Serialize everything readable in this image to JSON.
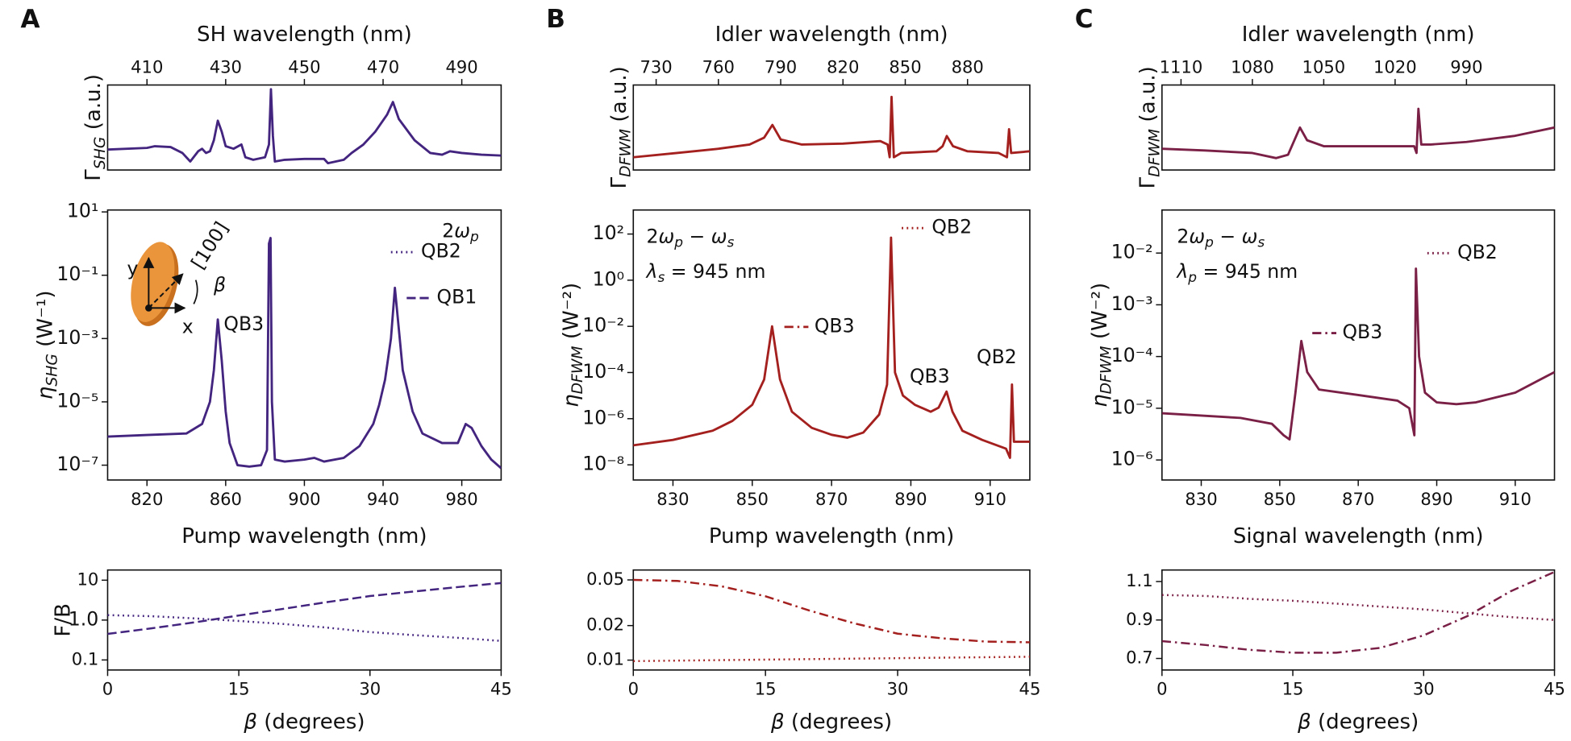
{
  "chart_data": [
    {
      "type": "line",
      "panel_label": "A",
      "xaxis": "top",
      "xlabel": "SH wavelength (nm)",
      "ylabel": [
        {
          "text": "Γ"
        },
        {
          "text": "SHG",
          "italic": true,
          "sub": true
        },
        {
          "text": " (a.u.)"
        }
      ],
      "x": [
        400,
        410,
        412,
        416,
        419,
        421,
        423,
        424,
        425,
        426,
        427,
        428,
        429,
        430,
        432,
        434,
        435,
        437,
        440,
        441,
        441.5,
        442,
        442.5,
        445,
        450,
        455,
        456,
        460,
        462,
        465,
        468,
        471,
        472.5,
        474,
        478,
        482,
        485,
        487,
        490,
        495,
        500
      ],
      "series": [
        {
          "color": "#43247f",
          "values": [
            0.24,
            0.26,
            0.28,
            0.27,
            0.2,
            0.1,
            0.22,
            0.25,
            0.2,
            0.22,
            0.35,
            0.58,
            0.45,
            0.28,
            0.25,
            0.3,
            0.15,
            0.12,
            0.15,
            0.3,
            0.95,
            0.4,
            0.1,
            0.12,
            0.13,
            0.13,
            0.08,
            0.12,
            0.2,
            0.3,
            0.45,
            0.65,
            0.8,
            0.6,
            0.35,
            0.2,
            0.18,
            0.22,
            0.2,
            0.18,
            0.17
          ]
        }
      ],
      "xlim": [
        400,
        500
      ],
      "xticks": [
        410,
        430,
        450,
        470,
        490
      ],
      "ylim": [
        0,
        1
      ]
    },
    {
      "type": "line",
      "xlabel": "Pump wavelength (nm)",
      "ylabel": [
        {
          "text": "η",
          "italic": true
        },
        {
          "text": "SHG",
          "italic": true,
          "sub": true
        },
        {
          "text": " (W⁻¹)"
        }
      ],
      "x": [
        800,
        820,
        840,
        848,
        852,
        854,
        856,
        858,
        860,
        862,
        866,
        872,
        878,
        881,
        882,
        882.8,
        883.5,
        885,
        890,
        900,
        905,
        910,
        920,
        928,
        935,
        938,
        941,
        944,
        946,
        948,
        950,
        955,
        960,
        970,
        978,
        982,
        985,
        990,
        995,
        1000
      ],
      "series": [
        {
          "color": "#43247f",
          "values": [
            8e-07,
            9e-07,
            1e-06,
            2e-06,
            1e-05,
            0.0001,
            0.004,
            0.0002,
            5e-06,
            5e-07,
            1e-07,
            9e-08,
            1e-07,
            3e-07,
            1,
            1.5,
            1e-05,
            1.5e-07,
            1.3e-07,
            1.5e-07,
            1.7e-07,
            1.3e-07,
            1.7e-07,
            4e-07,
            2e-06,
            8e-06,
            5e-05,
            0.001,
            0.04,
            0.002,
            0.0001,
            5e-06,
            1e-06,
            5e-07,
            5e-07,
            2e-06,
            1.5e-06,
            4e-07,
            1.5e-07,
            8e-08
          ]
        }
      ],
      "xlim": [
        800,
        1000
      ],
      "xticks": [
        820,
        860,
        900,
        940,
        980
      ],
      "yscale": "log",
      "ylim": [
        3.4e-08,
        11.5
      ],
      "yticks": [
        {
          "value": 1e-07,
          "label": "10⁻⁷"
        },
        {
          "value": 1e-05,
          "label": "10⁻⁵"
        },
        {
          "value": 0.001,
          "label": "10⁻³"
        },
        {
          "value": 0.1,
          "label": "10⁻¹"
        },
        {
          "value": 10,
          "label": "10¹"
        }
      ],
      "annotations": [
        {
          "text": [
            {
              "text": "2"
            },
            {
              "text": "ω",
              "italic": true
            },
            {
              "text": "p",
              "italic": true,
              "sub": true
            }
          ]
        },
        {
          "text": "QB2",
          "dash": "dotted"
        },
        {
          "text": "QB1",
          "dash": "dashed"
        },
        {
          "text": "QB3"
        }
      ],
      "inset_labels": [
        "y",
        "x",
        "[100]",
        "β"
      ]
    },
    {
      "type": "line",
      "ylabel": "F/B",
      "xlabel": [
        {
          "text": "β",
          "italic": true
        },
        {
          "text": " (degrees)"
        }
      ],
      "x": [
        0,
        5,
        10,
        15,
        20,
        25,
        30,
        35,
        40,
        45
      ],
      "series": [
        {
          "color": "#43247f",
          "dash": "dashed",
          "values": [
            0.45,
            0.62,
            0.88,
            1.3,
            1.9,
            2.8,
            4.0,
            5.2,
            6.7,
            8.5
          ]
        },
        {
          "color": "#43247f",
          "dash": "dotted",
          "values": [
            1.33,
            1.25,
            1.1,
            0.95,
            0.8,
            0.65,
            0.5,
            0.42,
            0.36,
            0.3
          ]
        }
      ],
      "xlim": [
        0,
        45
      ],
      "xticks": [
        0,
        15,
        30,
        45
      ],
      "yscale": "log",
      "ylim": [
        0.056,
        18
      ],
      "yticks": [
        0.1,
        {
          "value": 1,
          "label": "1.0"
        },
        10
      ]
    },
    {
      "type": "line",
      "panel_label": "B",
      "xaxis": "top",
      "xlabel": "Idler wavelength (nm)",
      "ylabel": [
        {
          "text": "Γ"
        },
        {
          "text": "DFWM",
          "italic": true,
          "sub": true
        },
        {
          "text": " (a.u.)"
        }
      ],
      "x": [
        719,
        740,
        760,
        775,
        782,
        786,
        790,
        800,
        820,
        838,
        841.5,
        842.5,
        843.4,
        844.5,
        848,
        865,
        868,
        870,
        873,
        880,
        895,
        899,
        900,
        901,
        910
      ],
      "series": [
        {
          "color": "#a3201f",
          "values": [
            0.15,
            0.2,
            0.25,
            0.3,
            0.38,
            0.53,
            0.36,
            0.3,
            0.31,
            0.34,
            0.3,
            0.15,
            0.86,
            0.15,
            0.2,
            0.22,
            0.28,
            0.4,
            0.28,
            0.22,
            0.2,
            0.15,
            0.48,
            0.2,
            0.22
          ]
        }
      ],
      "xlim": [
        719,
        910
      ],
      "xticks": [
        730,
        760,
        790,
        820,
        850,
        880
      ],
      "ylim": [
        0,
        1
      ]
    },
    {
      "type": "line",
      "xlabel": "Pump wavelength (nm)",
      "ylabel": [
        {
          "text": "η",
          "italic": true
        },
        {
          "text": "DFWM",
          "italic": true,
          "sub": true
        },
        {
          "text": " (W⁻²)"
        }
      ],
      "x": [
        820,
        830,
        840,
        845,
        850,
        853,
        855,
        857,
        860,
        865,
        870,
        874,
        878,
        882,
        884,
        885,
        886,
        888,
        891,
        895,
        897,
        899,
        900.5,
        903,
        908,
        914,
        915,
        915.5,
        916,
        918,
        920
      ],
      "series": [
        {
          "color": "#a3201f",
          "values": [
            7e-08,
            1.2e-07,
            3e-07,
            8e-07,
            4e-06,
            5e-05,
            0.01,
            5e-05,
            2e-06,
            4e-07,
            2e-07,
            1.5e-07,
            2.5e-07,
            1.5e-06,
            3e-05,
            70,
            0.0001,
            1e-05,
            4e-06,
            2e-06,
            3e-06,
            1.5e-05,
            2e-06,
            3e-07,
            1.2e-07,
            5e-08,
            2e-08,
            3e-05,
            1e-07,
            1e-07,
            1e-07
          ]
        }
      ],
      "xlim": [
        820,
        920
      ],
      "xticks": [
        830,
        850,
        870,
        890,
        910
      ],
      "yscale": "log",
      "ylim": [
        2.2e-09,
        1100
      ],
      "yticks": [
        {
          "value": 1e-08,
          "label": "10⁻⁸"
        },
        {
          "value": 1e-06,
          "label": "10⁻⁶"
        },
        {
          "value": 0.0001,
          "label": "10⁻⁴"
        },
        {
          "value": 0.01,
          "label": "10⁻²"
        },
        {
          "value": 1,
          "label": "10⁰"
        },
        {
          "value": 100,
          "label": "10²"
        }
      ],
      "annotations": [
        {
          "text": [
            {
              "text": "2"
            },
            {
              "text": "ω",
              "italic": true
            },
            {
              "text": "p",
              "italic": true,
              "sub": true
            },
            {
              "text": " − "
            },
            {
              "text": "ω",
              "italic": true
            },
            {
              "text": "s",
              "italic": true,
              "sub": true
            }
          ]
        },
        {
          "text": [
            {
              "text": "λ",
              "italic": true
            },
            {
              "text": "s",
              "italic": true,
              "sub": true
            },
            {
              "text": " = 945 nm"
            }
          ]
        },
        {
          "text": "QB2",
          "dash": "dotted"
        },
        {
          "text": "QB3",
          "dash": "dashdot"
        },
        {
          "text": "QB3"
        },
        {
          "text": "QB2"
        }
      ]
    },
    {
      "type": "line",
      "xlabel": [
        {
          "text": "β",
          "italic": true
        },
        {
          "text": " (degrees)"
        }
      ],
      "x": [
        0,
        5,
        10,
        15,
        20,
        25,
        30,
        35,
        40,
        45
      ],
      "series": [
        {
          "color": "#a3201f",
          "dash": "dashdot",
          "values": [
            0.05,
            0.049,
            0.044,
            0.036,
            0.027,
            0.021,
            0.017,
            0.0155,
            0.0145,
            0.0143
          ]
        },
        {
          "color": "#a3201f",
          "dash": "dotted",
          "values": [
            0.0098,
            0.0099,
            0.01,
            0.0101,
            0.0102,
            0.0103,
            0.0104,
            0.0105,
            0.0106,
            0.0107
          ]
        }
      ],
      "xlim": [
        0,
        45
      ],
      "xticks": [
        0,
        15,
        30,
        45
      ],
      "yscale": "log",
      "ylim": [
        0.0082,
        0.061
      ],
      "yticks": [
        0.01,
        0.02,
        0.05
      ]
    },
    {
      "type": "line",
      "panel_label": "C",
      "xaxis": "top",
      "xlabel": "Idler wavelength (nm)",
      "ylabel": [
        {
          "text": "Γ"
        },
        {
          "text": "DFWM",
          "italic": true,
          "sub": true
        },
        {
          "text": " (a.u.)"
        }
      ],
      "x": [
        1118,
        1100,
        1080,
        1070,
        1065,
        1060,
        1057,
        1050,
        1030,
        1012,
        1011,
        1010.2,
        1009,
        1005,
        990,
        970,
        953
      ],
      "series": [
        {
          "color": "#7a1f45",
          "values": [
            0.25,
            0.23,
            0.2,
            0.14,
            0.18,
            0.5,
            0.35,
            0.28,
            0.28,
            0.28,
            0.2,
            0.72,
            0.3,
            0.3,
            0.33,
            0.4,
            0.5
          ]
        }
      ],
      "xlim": [
        1118,
        953
      ],
      "xticks": [
        1110,
        1080,
        1050,
        1020,
        990
      ],
      "ylim": [
        0,
        1
      ]
    },
    {
      "type": "line",
      "xlabel": "Signal wavelength (nm)",
      "ylabel": [
        {
          "text": "η",
          "italic": true
        },
        {
          "text": "DFWM",
          "italic": true,
          "sub": true
        },
        {
          "text": " (W⁻²)"
        }
      ],
      "x": [
        820,
        840,
        848,
        851,
        852.5,
        854,
        855.5,
        857,
        860,
        870,
        880,
        883,
        884.3,
        884.7,
        885.5,
        887,
        890,
        895,
        900,
        910,
        920
      ],
      "series": [
        {
          "color": "#7a1f45",
          "values": [
            8e-06,
            6.5e-06,
            5e-06,
            3e-06,
            2.5e-06,
            2e-05,
            0.0002,
            5e-05,
            2.3e-05,
            1.8e-05,
            1.4e-05,
            1e-05,
            3e-06,
            0.005,
            0.0001,
            2e-05,
            1.3e-05,
            1.2e-05,
            1.3e-05,
            2e-05,
            5e-05
          ]
        }
      ],
      "xlim": [
        820,
        920
      ],
      "xticks": [
        830,
        850,
        870,
        890,
        910
      ],
      "yscale": "log",
      "ylim": [
        4.1e-07,
        0.068
      ],
      "yticks": [
        {
          "value": 1e-06,
          "label": "10⁻⁶"
        },
        {
          "value": 1e-05,
          "label": "10⁻⁵"
        },
        {
          "value": 0.0001,
          "label": "10⁻⁴"
        },
        {
          "value": 0.001,
          "label": "10⁻³"
        },
        {
          "value": 0.01,
          "label": "10⁻²"
        }
      ],
      "annotations": [
        {
          "text": [
            {
              "text": "2"
            },
            {
              "text": "ω",
              "italic": true
            },
            {
              "text": "p",
              "italic": true,
              "sub": true
            },
            {
              "text": " − "
            },
            {
              "text": "ω",
              "italic": true
            },
            {
              "text": "s",
              "italic": true,
              "sub": true
            }
          ]
        },
        {
          "text": [
            {
              "text": "λ",
              "italic": true
            },
            {
              "text": "p",
              "italic": true,
              "sub": true
            },
            {
              "text": " = 945 nm"
            }
          ]
        },
        {
          "text": "QB2",
          "dash": "dotted"
        },
        {
          "text": "QB3",
          "dash": "dashdot"
        }
      ]
    },
    {
      "type": "line",
      "xlabel": [
        {
          "text": "β",
          "italic": true
        },
        {
          "text": " (degrees)"
        }
      ],
      "x": [
        0,
        5,
        10,
        15,
        20,
        25,
        30,
        35,
        40,
        45
      ],
      "series": [
        {
          "color": "#7a1f45",
          "dash": "dotted",
          "values": [
            1.03,
            1.025,
            1.01,
            1.0,
            0.985,
            0.97,
            0.955,
            0.935,
            0.915,
            0.9
          ]
        },
        {
          "color": "#7a1f45",
          "dash": "dashdot",
          "values": [
            0.79,
            0.77,
            0.745,
            0.73,
            0.73,
            0.755,
            0.82,
            0.92,
            1.05,
            1.15
          ]
        }
      ],
      "xlim": [
        0,
        45
      ],
      "xticks": [
        0,
        15,
        30,
        45
      ],
      "ylim": [
        0.64,
        1.16
      ],
      "yticks": [
        0.7,
        0.9,
        1.1
      ]
    }
  ]
}
